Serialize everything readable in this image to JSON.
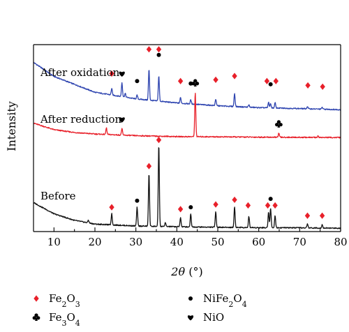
{
  "chart_data": {
    "type": "line",
    "title": "",
    "xlabel": {
      "italic": "2θ",
      "unit": " (°)"
    },
    "ylabel": "Intensity",
    "xlim": [
      5,
      80
    ],
    "xticks": [
      10,
      20,
      30,
      40,
      50,
      60,
      70,
      80
    ],
    "grid": false,
    "yticks": "none",
    "series": [
      {
        "name": "After oxidation",
        "color": "#2f45b0",
        "baseline_profile": [
          [
            5,
            0.905
          ],
          [
            10,
            0.83
          ],
          [
            20,
            0.745
          ],
          [
            30,
            0.71
          ],
          [
            40,
            0.688
          ],
          [
            50,
            0.673
          ],
          [
            60,
            0.663
          ],
          [
            70,
            0.658
          ],
          [
            80,
            0.652
          ]
        ],
        "peaks": [
          [
            24.1,
            0.035
          ],
          [
            26.6,
            0.075
          ],
          [
            27.4,
            0.02
          ],
          [
            30.3,
            0.02
          ],
          [
            33.2,
            0.165
          ],
          [
            35.6,
            0.135
          ],
          [
            40.9,
            0.03
          ],
          [
            43.4,
            0.022
          ],
          [
            49.5,
            0.035
          ],
          [
            54.1,
            0.07
          ],
          [
            57.6,
            0.012
          ],
          [
            62.4,
            0.03
          ],
          [
            62.9,
            0.022
          ],
          [
            64.0,
            0.028
          ],
          [
            71.9,
            0.012
          ],
          [
            75.5,
            0.01
          ]
        ],
        "markers": [
          {
            "x": 24.1,
            "y": 0.845,
            "phase": "Fe2O3"
          },
          {
            "x": 26.6,
            "y": 0.845,
            "phase": "NiO"
          },
          {
            "x": 30.3,
            "y": 0.805,
            "phase": "NiFe2O4"
          },
          {
            "x": 33.2,
            "y": 0.975,
            "phase": "Fe2O3"
          },
          {
            "x": 35.6,
            "y": 0.975,
            "phase": "Fe2O3"
          },
          {
            "x": 35.6,
            "y": 0.945,
            "phase": "NiFe2O4"
          },
          {
            "x": 40.9,
            "y": 0.805,
            "phase": "Fe2O3"
          },
          {
            "x": 43.4,
            "y": 0.792,
            "phase": "NiFe2O4"
          },
          {
            "x": 49.5,
            "y": 0.812,
            "phase": "Fe2O3"
          },
          {
            "x": 54.1,
            "y": 0.832,
            "phase": "Fe2O3"
          },
          {
            "x": 62.0,
            "y": 0.805,
            "phase": "Fe2O3"
          },
          {
            "x": 62.9,
            "y": 0.788,
            "phase": "NiFe2O4"
          },
          {
            "x": 64.2,
            "y": 0.805,
            "phase": "Fe2O3"
          },
          {
            "x": 72.0,
            "y": 0.782,
            "phase": "Fe2O3"
          },
          {
            "x": 75.6,
            "y": 0.775,
            "phase": "Fe2O3"
          }
        ]
      },
      {
        "name": "After reduction",
        "color": "#e8202a",
        "baseline_profile": [
          [
            5,
            0.58
          ],
          [
            10,
            0.545
          ],
          [
            15,
            0.53
          ],
          [
            20,
            0.522
          ],
          [
            30,
            0.513
          ],
          [
            40,
            0.508
          ],
          [
            50,
            0.507
          ],
          [
            60,
            0.505
          ],
          [
            70,
            0.504
          ],
          [
            80,
            0.503
          ]
        ],
        "peaks": [
          [
            22.8,
            0.035
          ],
          [
            26.6,
            0.035
          ],
          [
            44.5,
            0.235
          ],
          [
            64.9,
            0.022
          ],
          [
            74.5,
            0.008
          ]
        ],
        "markers": [
          {
            "x": 26.6,
            "y": 0.6,
            "phase": "NiO"
          },
          {
            "x": 44.5,
            "y": 0.795,
            "phase": "Fe3O4"
          },
          {
            "x": 64.9,
            "y": 0.575,
            "phase": "Fe3O4"
          }
        ]
      },
      {
        "name": "Before",
        "color": "#111111",
        "baseline_profile": [
          [
            5,
            0.155
          ],
          [
            10,
            0.095
          ],
          [
            15,
            0.06
          ],
          [
            20,
            0.04
          ],
          [
            30,
            0.03
          ],
          [
            40,
            0.026
          ],
          [
            50,
            0.023
          ],
          [
            60,
            0.021
          ],
          [
            70,
            0.02
          ],
          [
            80,
            0.018
          ]
        ],
        "peaks": [
          [
            18.4,
            0.015
          ],
          [
            24.1,
            0.06
          ],
          [
            30.3,
            0.1
          ],
          [
            33.2,
            0.285
          ],
          [
            35.6,
            0.44
          ],
          [
            37.2,
            0.02
          ],
          [
            40.9,
            0.05
          ],
          [
            43.4,
            0.07
          ],
          [
            49.5,
            0.085
          ],
          [
            54.1,
            0.11
          ],
          [
            57.6,
            0.06
          ],
          [
            62.4,
            0.085
          ],
          [
            62.9,
            0.105
          ],
          [
            64.0,
            0.065
          ],
          [
            71.9,
            0.022
          ],
          [
            75.5,
            0.018
          ]
        ],
        "markers": [
          {
            "x": 24.1,
            "y": 0.13,
            "phase": "Fe2O3"
          },
          {
            "x": 30.3,
            "y": 0.165,
            "phase": "NiFe2O4"
          },
          {
            "x": 33.2,
            "y": 0.35,
            "phase": "Fe2O3"
          },
          {
            "x": 35.6,
            "y": 0.49,
            "phase": "Fe2O3"
          },
          {
            "x": 40.9,
            "y": 0.12,
            "phase": "Fe2O3"
          },
          {
            "x": 43.4,
            "y": 0.13,
            "phase": "NiFe2O4"
          },
          {
            "x": 49.5,
            "y": 0.145,
            "phase": "Fe2O3"
          },
          {
            "x": 54.1,
            "y": 0.17,
            "phase": "Fe2O3"
          },
          {
            "x": 57.4,
            "y": 0.14,
            "phase": "Fe2O3"
          },
          {
            "x": 62.9,
            "y": 0.175,
            "phase": "NiFe2O4"
          },
          {
            "x": 62.2,
            "y": 0.14,
            "phase": "Fe2O3"
          },
          {
            "x": 64.0,
            "y": 0.14,
            "phase": "Fe2O3"
          },
          {
            "x": 71.9,
            "y": 0.085,
            "phase": "Fe2O3"
          },
          {
            "x": 75.5,
            "y": 0.085,
            "phase": "Fe2O3"
          }
        ]
      }
    ],
    "curve_labels": [
      {
        "text": "After oxidation",
        "series": "After oxidation"
      },
      {
        "text": "After reduction",
        "series": "After reduction"
      },
      {
        "text": "Before",
        "series": "Before"
      }
    ],
    "legend": {
      "placement": "below",
      "entries": [
        {
          "phase": "Fe2O3",
          "base": "Fe",
          "sub1": "2",
          "mid": "O",
          "sub2": "3",
          "symbol": "diamond",
          "color": "#e8202a"
        },
        {
          "phase": "NiFe2O4",
          "base": "NiFe",
          "sub1": "2",
          "mid": "O",
          "sub2": "4",
          "symbol": "circle",
          "color": "#000000"
        },
        {
          "phase": "Fe3O4",
          "base": "Fe",
          "sub1": "3",
          "mid": "O",
          "sub2": "4",
          "symbol": "club",
          "color": "#000000"
        },
        {
          "phase": "NiO",
          "base": "NiO",
          "sub1": "",
          "mid": "",
          "sub2": "",
          "symbol": "heart",
          "color": "#000000"
        }
      ]
    }
  }
}
